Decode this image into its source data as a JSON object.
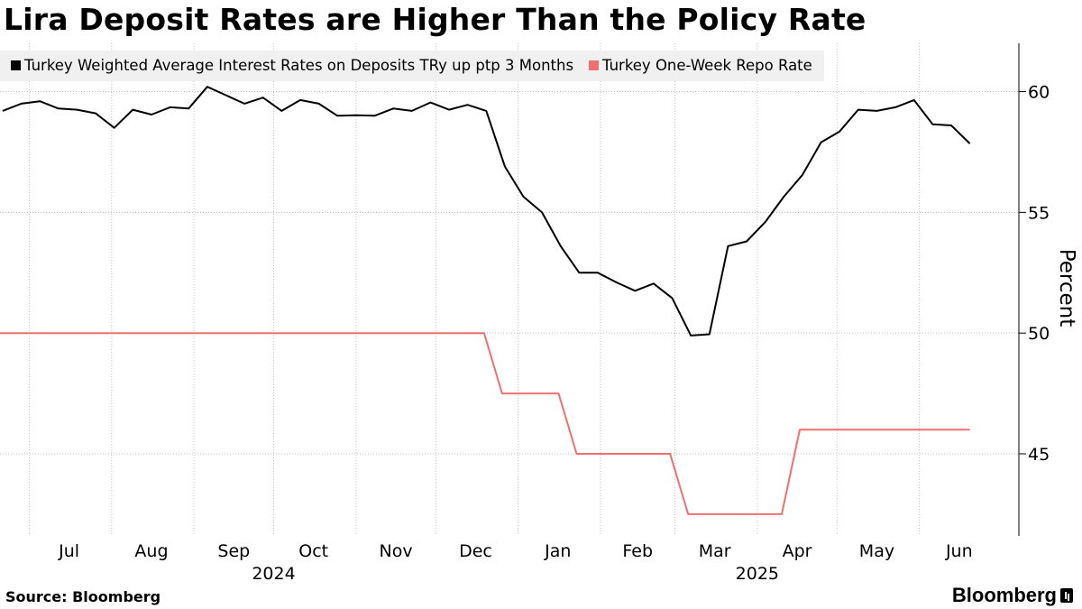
{
  "title": "Lira Deposit Rates are Higher Than the Policy Rate",
  "source": "Source: Bloomberg",
  "brand": "Bloomberg",
  "chart_data": {
    "type": "line",
    "title": "Lira Deposit Rates are Higher Than the Policy Rate",
    "ylabel": "Percent",
    "ylim": [
      41.6,
      62
    ],
    "yticks": [
      45,
      50,
      55,
      60
    ],
    "grid": true,
    "legend_position": "top-left",
    "x_range": [
      "2024-06-20",
      "2025-07-01"
    ],
    "month_ticks": [
      {
        "label": "Jul",
        "date": "2024-07-01"
      },
      {
        "label": "Aug",
        "date": "2024-08-01"
      },
      {
        "label": "Sep",
        "date": "2024-09-01"
      },
      {
        "label": "Oct",
        "date": "2024-10-01"
      },
      {
        "label": "Nov",
        "date": "2024-11-01"
      },
      {
        "label": "Dec",
        "date": "2024-12-01"
      },
      {
        "label": "Jan",
        "date": "2025-01-01"
      },
      {
        "label": "Feb",
        "date": "2025-02-01"
      },
      {
        "label": "Mar",
        "date": "2025-03-01"
      },
      {
        "label": "Apr",
        "date": "2025-04-01"
      },
      {
        "label": "May",
        "date": "2025-05-01"
      },
      {
        "label": "Jun",
        "date": "2025-06-01"
      }
    ],
    "year_labels": [
      {
        "label": "2024",
        "date": "2024-10-01"
      },
      {
        "label": "2025",
        "date": "2025-04-01"
      }
    ],
    "series": [
      {
        "name": "Turkey Weighted Average Interest Rates on Deposits TRy up ptp 3 Months",
        "color": "#000000",
        "points": [
          [
            "2024-06-21",
            59.2
          ],
          [
            "2024-06-28",
            59.5
          ],
          [
            "2024-07-05",
            59.6
          ],
          [
            "2024-07-12",
            59.3
          ],
          [
            "2024-07-19",
            59.25
          ],
          [
            "2024-07-26",
            59.1
          ],
          [
            "2024-08-02",
            58.5
          ],
          [
            "2024-08-09",
            59.25
          ],
          [
            "2024-08-16",
            59.05
          ],
          [
            "2024-08-23",
            59.35
          ],
          [
            "2024-08-30",
            59.3
          ],
          [
            "2024-09-06",
            60.2
          ],
          [
            "2024-09-13",
            59.85
          ],
          [
            "2024-09-20",
            59.5
          ],
          [
            "2024-09-27",
            59.75
          ],
          [
            "2024-10-04",
            59.2
          ],
          [
            "2024-10-11",
            59.65
          ],
          [
            "2024-10-18",
            59.5
          ],
          [
            "2024-10-25",
            59.0
          ],
          [
            "2024-11-01",
            59.02
          ],
          [
            "2024-11-08",
            59.0
          ],
          [
            "2024-11-15",
            59.3
          ],
          [
            "2024-11-22",
            59.2
          ],
          [
            "2024-11-29",
            59.55
          ],
          [
            "2024-12-06",
            59.25
          ],
          [
            "2024-12-13",
            59.45
          ],
          [
            "2024-12-20",
            59.2
          ],
          [
            "2024-12-27",
            56.9
          ],
          [
            "2025-01-03",
            55.65
          ],
          [
            "2025-01-10",
            55.0
          ],
          [
            "2025-01-17",
            53.6
          ],
          [
            "2025-01-24",
            52.5
          ],
          [
            "2025-01-31",
            52.5
          ],
          [
            "2025-02-07",
            52.1
          ],
          [
            "2025-02-14",
            51.75
          ],
          [
            "2025-02-21",
            52.05
          ],
          [
            "2025-02-28",
            51.45
          ],
          [
            "2025-03-07",
            49.9
          ],
          [
            "2025-03-14",
            49.95
          ],
          [
            "2025-03-21",
            53.6
          ],
          [
            "2025-03-28",
            53.8
          ],
          [
            "2025-04-04",
            54.6
          ],
          [
            "2025-04-11",
            55.65
          ],
          [
            "2025-04-18",
            56.55
          ],
          [
            "2025-04-25",
            57.9
          ],
          [
            "2025-05-02",
            58.35
          ],
          [
            "2025-05-09",
            59.25
          ],
          [
            "2025-05-16",
            59.2
          ],
          [
            "2025-05-23",
            59.35
          ],
          [
            "2025-05-30",
            59.65
          ],
          [
            "2025-06-06",
            58.65
          ],
          [
            "2025-06-13",
            58.6
          ],
          [
            "2025-06-20",
            57.85
          ]
        ]
      },
      {
        "name": "Turkey One-Week Repo Rate",
        "color": "#f07070",
        "step": true,
        "points": [
          [
            "2024-06-20",
            50.0
          ],
          [
            "2024-12-26",
            47.5
          ],
          [
            "2025-01-23",
            45.0
          ],
          [
            "2025-03-06",
            42.5
          ],
          [
            "2025-04-17",
            46.0
          ],
          [
            "2025-06-20",
            46.0
          ]
        ]
      }
    ]
  }
}
